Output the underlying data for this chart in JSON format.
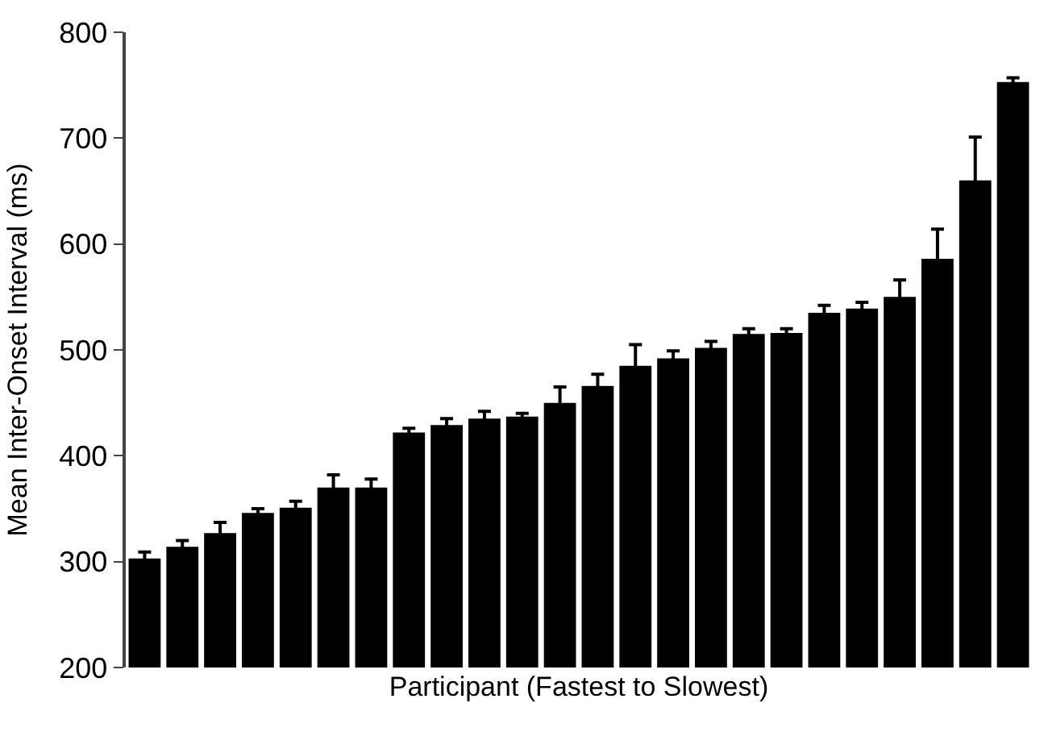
{
  "chart_data": {
    "type": "bar",
    "xlabel": "Participant (Fastest to Slowest)",
    "ylabel": "Mean Inter-Onset Interval (ms)",
    "categories": [
      null,
      null,
      null,
      null,
      null,
      null,
      null,
      null,
      null,
      null,
      null,
      null,
      null,
      null,
      null,
      null,
      null,
      null,
      null,
      null,
      null,
      null,
      null,
      null
    ],
    "values": [
      303,
      314,
      327,
      346,
      351,
      370,
      370,
      422,
      429,
      435,
      437,
      450,
      466,
      485,
      492,
      502,
      515,
      516,
      535,
      539,
      550,
      586,
      660,
      753
    ],
    "errors": [
      6,
      6,
      10,
      4,
      6,
      12,
      8,
      4,
      6,
      7,
      3,
      15,
      11,
      20,
      7,
      6,
      5,
      4,
      7,
      6,
      16,
      28,
      41,
      4
    ],
    "color": "#000000",
    "ylim": [
      200,
      800
    ],
    "yticks": [
      200,
      300,
      400,
      500,
      600,
      700,
      800
    ]
  }
}
